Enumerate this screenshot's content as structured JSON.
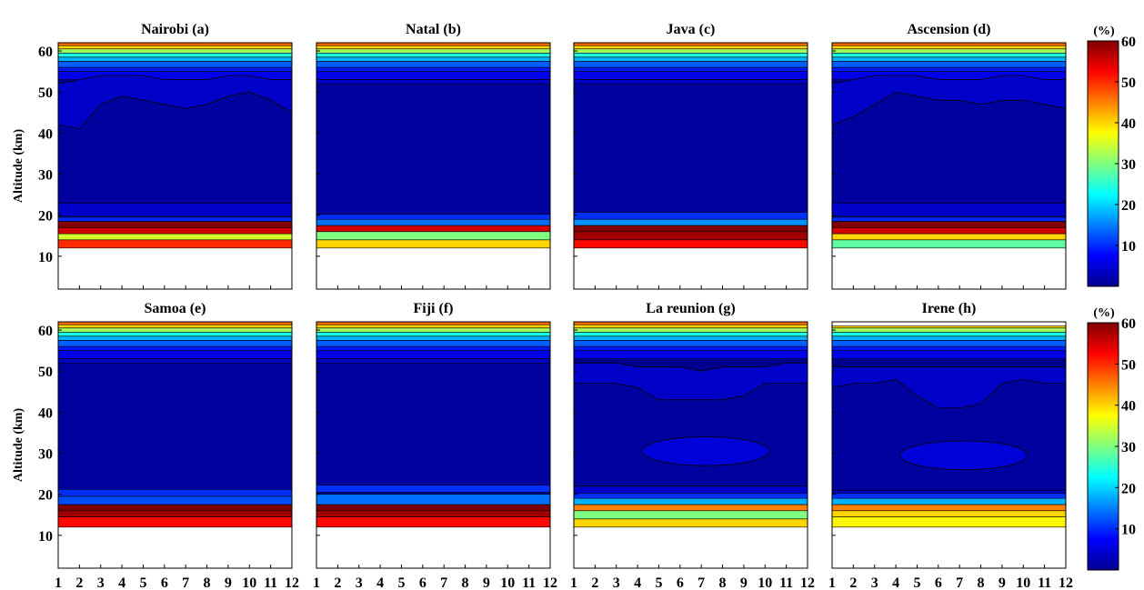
{
  "figure": {
    "type": "contour-panels",
    "ylabel": "Altitude (km)",
    "x_ticks": [
      "1",
      "2",
      "3",
      "4",
      "5",
      "6",
      "7",
      "8",
      "9",
      "10",
      "11",
      "12"
    ],
    "y_ticks": [
      "10",
      "20",
      "30",
      "40",
      "50",
      "60"
    ],
    "colorbar": {
      "unit": "(%)",
      "ticks": [
        "10",
        "20",
        "30",
        "40",
        "50",
        "60"
      ],
      "range": [
        0,
        60
      ],
      "colormap": "jet"
    }
  },
  "chart_data": [
    {
      "type": "heatmap",
      "panel": "a",
      "title": "Nairobi (a)",
      "xlim": [
        1,
        12
      ],
      "ylim": [
        2,
        62
      ],
      "data_bottom_km": 12,
      "data_top_km": 62,
      "upper_edge_km": 53,
      "upper_edge_values": [
        52,
        53,
        54,
        54,
        54,
        53,
        53,
        53,
        54,
        54,
        53,
        53
      ],
      "inner_top_km": [
        42,
        41,
        47,
        49,
        48,
        47,
        46,
        47,
        49,
        50,
        48,
        45
      ],
      "inner_bottom_km": 23,
      "lower_band_km": 18.5,
      "tropopause_layers": [
        [
          12,
          14,
          50
        ],
        [
          14,
          15.5,
          35
        ],
        [
          15.5,
          17,
          55
        ],
        [
          17,
          18.5,
          60
        ],
        [
          18.5,
          19.5,
          10
        ]
      ],
      "min_percent": 2,
      "max_percent": 60
    },
    {
      "type": "heatmap",
      "panel": "b",
      "title": "Natal (b)",
      "xlim": [
        1,
        12
      ],
      "ylim": [
        2,
        62
      ],
      "data_bottom_km": 12,
      "data_top_km": 62,
      "upper_edge_km": 53,
      "inner_top_km": null,
      "tropopause_layers": [
        [
          12,
          14,
          40
        ],
        [
          14,
          16,
          30
        ],
        [
          16,
          17.5,
          55
        ],
        [
          17.5,
          19,
          14
        ]
      ],
      "lower_band_km": 19,
      "min_percent": 2,
      "max_percent": 60
    },
    {
      "type": "heatmap",
      "panel": "c",
      "title": "Java (c)",
      "xlim": [
        1,
        12
      ],
      "ylim": [
        2,
        62
      ],
      "data_bottom_km": 12,
      "data_top_km": 62,
      "upper_edge_km": 53,
      "inner_top_km": null,
      "tropopause_layers": [
        [
          12,
          14,
          52
        ],
        [
          14,
          16,
          58
        ],
        [
          16,
          17.5,
          60
        ],
        [
          17.5,
          19,
          16
        ]
      ],
      "lower_band_km": 19.5,
      "min_percent": 2,
      "max_percent": 60
    },
    {
      "type": "heatmap",
      "panel": "d",
      "title": "Ascension (d)",
      "xlim": [
        1,
        12
      ],
      "ylim": [
        2,
        62
      ],
      "data_bottom_km": 12,
      "data_top_km": 62,
      "upper_edge_km": 53,
      "upper_edge_values": [
        52,
        53,
        54,
        54,
        54,
        53,
        53,
        53,
        54,
        54,
        53,
        53
      ],
      "inner_top_km": [
        42,
        44,
        47,
        50,
        49,
        48,
        48,
        47,
        48,
        48,
        47,
        46
      ],
      "inner_bottom_km": 23,
      "lower_band_km": 18.5,
      "tropopause_layers": [
        [
          12,
          14,
          28
        ],
        [
          14,
          15.5,
          40
        ],
        [
          15.5,
          17,
          55
        ],
        [
          17,
          18.5,
          60
        ],
        [
          18.5,
          19.5,
          10
        ]
      ],
      "min_percent": 2,
      "max_percent": 60
    },
    {
      "type": "heatmap",
      "panel": "e",
      "title": "Samoa (e)",
      "xlim": [
        1,
        12
      ],
      "ylim": [
        2,
        62
      ],
      "data_bottom_km": 12,
      "data_top_km": 62,
      "upper_edge_km": 53,
      "inner_top_km": null,
      "tropopause_layers": [
        [
          12,
          14.5,
          52
        ],
        [
          14.5,
          16,
          58
        ],
        [
          16,
          17.5,
          60
        ],
        [
          17.5,
          19.5,
          12
        ]
      ],
      "lower_band_km": 20,
      "min_percent": 2,
      "max_percent": 60
    },
    {
      "type": "heatmap",
      "panel": "f",
      "title": "Fiji (f)",
      "xlim": [
        1,
        12
      ],
      "ylim": [
        2,
        62
      ],
      "data_bottom_km": 12,
      "data_top_km": 62,
      "upper_edge_km": 53,
      "inner_top_km": null,
      "tropopause_layers": [
        [
          12,
          14.5,
          52
        ],
        [
          14.5,
          16,
          58
        ],
        [
          16,
          17.5,
          60
        ],
        [
          17.5,
          20,
          14
        ]
      ],
      "lower_band_km": 21,
      "min_percent": 2,
      "max_percent": 60
    },
    {
      "type": "heatmap",
      "panel": "g",
      "title": "La reunion (g)",
      "xlim": [
        1,
        12
      ],
      "ylim": [
        2,
        62
      ],
      "data_bottom_km": 12,
      "data_top_km": 62,
      "upper_edge_km": 50,
      "upper_edge_values": [
        52,
        52,
        52,
        51,
        51,
        51,
        50,
        51,
        51,
        51,
        52,
        52
      ],
      "inner_top_km": [
        47,
        47,
        47,
        46,
        43,
        43,
        43,
        43,
        44,
        47,
        47,
        47
      ],
      "mid_blob_km": [
        27,
        34
      ],
      "inner_bottom_km": 22,
      "lower_band_km": 19,
      "tropopause_layers": [
        [
          12,
          14,
          40
        ],
        [
          14,
          16,
          30
        ],
        [
          16,
          17.5,
          45
        ],
        [
          17.5,
          19,
          18
        ]
      ],
      "min_percent": 2,
      "max_percent": 60
    },
    {
      "type": "heatmap",
      "panel": "h",
      "title": "Irene (h)",
      "xlim": [
        1,
        12
      ],
      "ylim": [
        2,
        62
      ],
      "data_bottom_km": 12,
      "data_top_km": 61,
      "upper_edge_km": 51,
      "upper_edge_values": [
        51,
        51,
        51,
        51,
        51,
        51,
        51,
        51,
        51,
        51,
        51,
        51
      ],
      "inner_top_km": [
        46,
        47,
        47,
        48,
        44,
        41,
        41,
        42,
        47,
        48,
        47,
        47
      ],
      "mid_blob_km": [
        26,
        33
      ],
      "inner_bottom_km": 21,
      "lower_band_km": 19,
      "tropopause_layers": [
        [
          12,
          14.5,
          38
        ],
        [
          14.5,
          16,
          40
        ],
        [
          16,
          17.5,
          45
        ],
        [
          17.5,
          19,
          18
        ]
      ],
      "min_percent": 2,
      "max_percent": 60
    }
  ],
  "colors": {
    "stops": [
      "#00008f",
      "#0000ff",
      "#00ffff",
      "#ffff00",
      "#ff0000",
      "#800000"
    ],
    "background": "#ffffff",
    "axis": "#000000"
  }
}
